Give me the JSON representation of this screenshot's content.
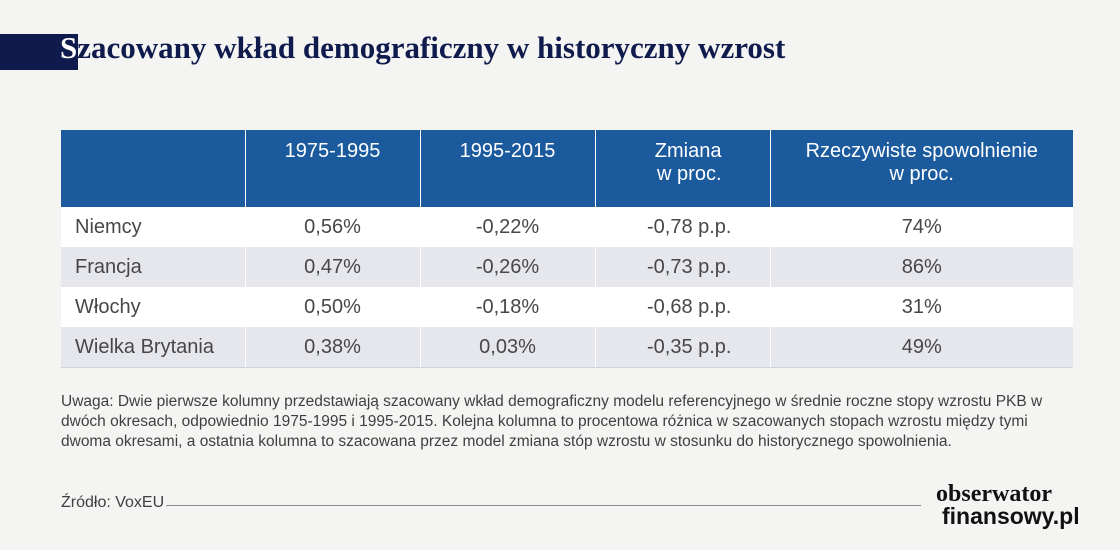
{
  "title": {
    "first": "S",
    "rest": "zacowany wkład demograficzny w historyczny wzrost"
  },
  "table": {
    "headers": [
      "",
      "1975-1995",
      "1995-2015",
      {
        "line1": "Zmiana",
        "line2": "w proc."
      },
      {
        "line1": "Rzeczywiste spowolnienie",
        "line2": "w proc."
      }
    ],
    "rows": [
      {
        "country": "Niemcy",
        "c1": "0,56%",
        "c2": "-0,22%",
        "change": "-0,78 p.p.",
        "slowdown": "74%"
      },
      {
        "country": "Francja",
        "c1": "0,47%",
        "c2": "-0,26%",
        "change": "-0,73 p.p.",
        "slowdown": "86%"
      },
      {
        "country": "Włochy",
        "c1": "0,50%",
        "c2": "-0,18%",
        "change": "-0,68 p.p.",
        "slowdown": "31%"
      },
      {
        "country": "Wielka Brytania",
        "c1": "0,38%",
        "c2": "0,03%",
        "change": "-0,35 p.p.",
        "slowdown": "49%"
      }
    ]
  },
  "note": "Uwaga: Dwie pierwsze kolumny przedstawiają szacowany wkład demograficzny modelu referencyjnego w średnie roczne stopy wzrostu PKB w dwóch okresach, odpowiednio 1975-1995 i 1995-2015. Kolejna kolumna to procentowa różnica w szacowanych stopach wzrostu między tymi dwoma okresami, a ostatnia kolumna to szacowana przez model zmiana stóp wzrostu w stosunku do historycznego spowolnienia.",
  "source": "Źródło: VoxEU",
  "logo": {
    "line1": "obserwator",
    "line2": "finansowy.pl"
  },
  "colors": {
    "header_bg": "#1a5a9d",
    "title": "#0f1a4d",
    "row_alt": "#e6e7ec"
  }
}
